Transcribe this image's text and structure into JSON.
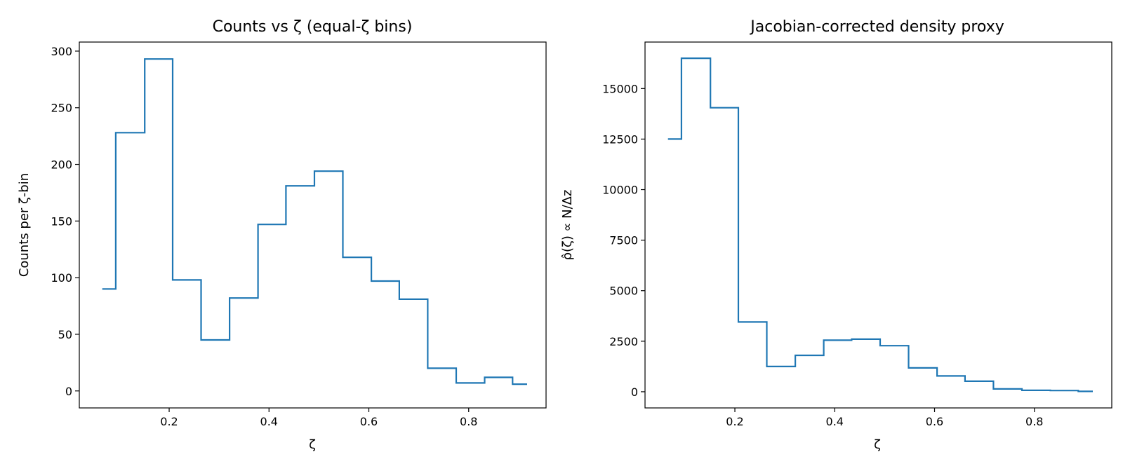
{
  "chart_data": [
    {
      "type": "line",
      "step": "post",
      "title": "Counts vs ζ (equal-ζ bins)",
      "xlabel": "ζ",
      "ylabel": "Counts per ζ-bin",
      "color": "#1f77b4",
      "xlim": [
        0.02,
        0.955
      ],
      "ylim": [
        -15,
        308
      ],
      "xticks": [
        "0.2",
        "0.4",
        "0.6",
        "0.8"
      ],
      "yticks": [
        "0",
        "50",
        "100",
        "150",
        "200",
        "250",
        "300"
      ],
      "x": [
        0.066,
        0.093,
        0.151,
        0.207,
        0.264,
        0.321,
        0.378,
        0.434,
        0.491,
        0.548,
        0.605,
        0.661,
        0.718,
        0.775,
        0.832,
        0.888,
        0.917
      ],
      "y": [
        90,
        228,
        293,
        98,
        45,
        82,
        147,
        181,
        194,
        118,
        97,
        81,
        20,
        7,
        12,
        6,
        6
      ]
    },
    {
      "type": "line",
      "step": "post",
      "title": "Jacobian-corrected density proxy",
      "xlabel": "ζ",
      "ylabel": "ρ̂(ζ) ∝ N/Δz",
      "color": "#1f77b4",
      "xlim": [
        0.02,
        0.955
      ],
      "ylim": [
        -800,
        17300
      ],
      "xticks": [
        "0.2",
        "0.4",
        "0.6",
        "0.8"
      ],
      "yticks": [
        "0",
        "2500",
        "5000",
        "7500",
        "10000",
        "12500",
        "15000"
      ],
      "x": [
        0.066,
        0.093,
        0.151,
        0.207,
        0.264,
        0.321,
        0.378,
        0.434,
        0.491,
        0.548,
        0.605,
        0.661,
        0.718,
        0.775,
        0.832,
        0.888,
        0.917
      ],
      "y": [
        12500,
        16500,
        14050,
        3450,
        1250,
        1800,
        2550,
        2600,
        2280,
        1180,
        780,
        520,
        140,
        70,
        60,
        20,
        20
      ]
    }
  ]
}
